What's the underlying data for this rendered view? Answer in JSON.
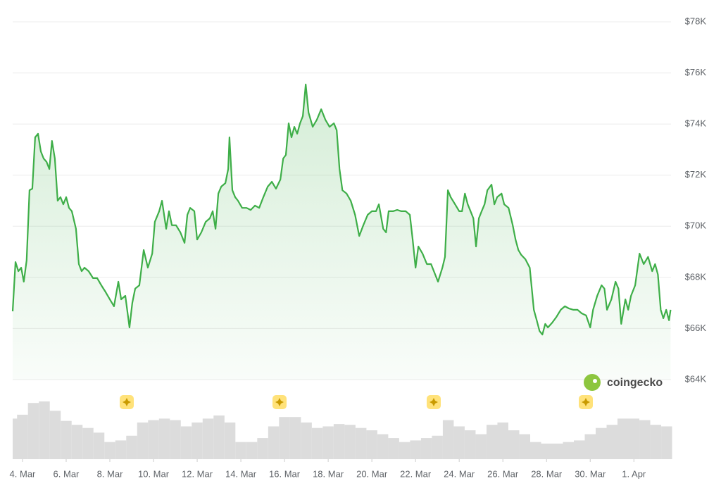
{
  "chart_data": {
    "type": "line",
    "watermark": "coingecko",
    "x": [
      -0.45,
      -0.32,
      -0.19,
      -0.06,
      0.06,
      0.19,
      0.32,
      0.45,
      0.58,
      0.71,
      0.84,
      0.97,
      1.1,
      1.23,
      1.35,
      1.48,
      1.61,
      1.74,
      1.87,
      2,
      2.13,
      2.26,
      2.45,
      2.58,
      2.71,
      2.84,
      3.03,
      3.23,
      3.42,
      3.61,
      3.81,
      4,
      4.19,
      4.39,
      4.52,
      4.71,
      4.9,
      5.03,
      5.16,
      5.35,
      5.55,
      5.74,
      5.94,
      6.06,
      6.26,
      6.39,
      6.58,
      6.71,
      6.84,
      7.03,
      7.23,
      7.42,
      7.55,
      7.68,
      7.87,
      8,
      8.19,
      8.39,
      8.58,
      8.71,
      8.84,
      8.97,
      9.1,
      9.29,
      9.42,
      9.48,
      9.61,
      9.74,
      9.87,
      10.06,
      10.26,
      10.45,
      10.65,
      10.84,
      11.03,
      11.23,
      11.42,
      11.61,
      11.81,
      11.94,
      12.06,
      12.19,
      12.32,
      12.45,
      12.58,
      12.71,
      12.84,
      12.97,
      13.1,
      13.29,
      13.48,
      13.68,
      13.87,
      14.06,
      14.26,
      14.39,
      14.52,
      14.65,
      14.84,
      15.03,
      15.23,
      15.42,
      15.61,
      15.81,
      16,
      16.19,
      16.32,
      16.52,
      16.65,
      16.77,
      16.97,
      17.16,
      17.35,
      17.55,
      17.74,
      17.87,
      18,
      18.13,
      18.32,
      18.52,
      18.71,
      18.9,
      19.03,
      19.23,
      19.35,
      19.48,
      19.61,
      19.81,
      20,
      20.13,
      20.26,
      20.39,
      20.52,
      20.65,
      20.77,
      20.9,
      21.03,
      21.16,
      21.29,
      21.48,
      21.61,
      21.74,
      21.94,
      22.06,
      22.26,
      22.45,
      22.58,
      22.71,
      22.84,
      23.03,
      23.23,
      23.42,
      23.55,
      23.68,
      23.81,
      23.94,
      24.06,
      24.26,
      24.45,
      24.65,
      24.84,
      25.03,
      25.23,
      25.42,
      25.61,
      25.81,
      26,
      26.13,
      26.32,
      26.52,
      26.65,
      26.77,
      26.97,
      27.16,
      27.29,
      27.42,
      27.61,
      27.74,
      27.87,
      28.06,
      28.26,
      28.45,
      28.65,
      28.84,
      28.97,
      29.1,
      29.23,
      29.35,
      29.48,
      29.61,
      29.68
    ],
    "series": [
      {
        "color": "#3eae48",
        "values": [
          66670,
          68600,
          68240,
          68380,
          67830,
          68660,
          71410,
          71470,
          73480,
          73620,
          72930,
          72650,
          72520,
          72240,
          73340,
          72650,
          71000,
          71140,
          70860,
          71140,
          70720,
          70590,
          69900,
          68520,
          68240,
          68380,
          68240,
          67970,
          67970,
          67690,
          67420,
          67140,
          66870,
          67830,
          67140,
          67280,
          66040,
          67000,
          67560,
          67690,
          69070,
          68380,
          68930,
          70170,
          70590,
          71000,
          69900,
          70590,
          70040,
          70040,
          69760,
          69350,
          70450,
          70720,
          70590,
          69480,
          69760,
          70170,
          70310,
          70590,
          69900,
          71280,
          71550,
          71690,
          72240,
          73480,
          71410,
          71140,
          71000,
          70720,
          70720,
          70640,
          70810,
          70720,
          71140,
          71550,
          71740,
          71470,
          71830,
          72650,
          72790,
          74030,
          73480,
          73890,
          73620,
          74030,
          74310,
          75550,
          74450,
          73890,
          74170,
          74580,
          74170,
          73890,
          74030,
          73760,
          72240,
          71410,
          71280,
          71000,
          70450,
          69620,
          70040,
          70450,
          70590,
          70590,
          70860,
          69900,
          69760,
          70590,
          70590,
          70640,
          70590,
          70590,
          70450,
          69480,
          68380,
          69210,
          68930,
          68520,
          68520,
          68110,
          67830,
          68380,
          68800,
          71410,
          71140,
          70860,
          70590,
          70590,
          71280,
          70860,
          70590,
          70310,
          69210,
          70310,
          70590,
          70860,
          71410,
          71630,
          70860,
          71140,
          71280,
          70860,
          70720,
          70040,
          69480,
          69070,
          68880,
          68710,
          68380,
          66730,
          66320,
          65900,
          65760,
          66180,
          66040,
          66230,
          66450,
          66730,
          66870,
          66780,
          66730,
          66730,
          66590,
          66510,
          66040,
          66730,
          67280,
          67690,
          67560,
          66730,
          67140,
          67830,
          67560,
          66180,
          67140,
          66730,
          67280,
          67690,
          68930,
          68520,
          68800,
          68240,
          68520,
          68110,
          66730,
          66400,
          66730,
          66320,
          66730
        ]
      }
    ],
    "volume": {
      "color": "#dcdcdc",
      "x": [
        -0.45,
        0,
        0.5,
        1,
        1.5,
        2,
        2.5,
        3,
        3.5,
        4,
        4.5,
        5,
        5.5,
        6,
        6.5,
        7,
        7.5,
        8,
        8.5,
        9,
        9.5,
        10,
        10.5,
        11,
        11.5,
        12,
        12.5,
        13,
        13.5,
        14,
        14.5,
        15,
        15.5,
        16,
        16.5,
        17,
        17.5,
        18,
        18.5,
        19,
        19.5,
        20,
        20.5,
        21,
        21.5,
        22,
        22.5,
        23,
        23.5,
        24,
        24.5,
        25,
        25.5,
        26,
        26.5,
        27,
        27.5,
        28,
        28.5,
        29,
        29.5
      ],
      "values": [
        52,
        57,
        72,
        74,
        62,
        49,
        44,
        40,
        34,
        22,
        24,
        30,
        47,
        50,
        52,
        50,
        42,
        47,
        52,
        56,
        47,
        22,
        22,
        27,
        42,
        54,
        54,
        47,
        40,
        42,
        45,
        44,
        40,
        37,
        32,
        27,
        22,
        24,
        27,
        30,
        50,
        42,
        37,
        32,
        44,
        47,
        37,
        32,
        22,
        20,
        20,
        22,
        24,
        32,
        40,
        44,
        52,
        52,
        50,
        44,
        42
      ]
    },
    "xlim": [
      -0.45,
      29.7
    ],
    "xticks": [
      {
        "value": 0,
        "label": "4. Mar"
      },
      {
        "value": 2,
        "label": "6. Mar"
      },
      {
        "value": 4,
        "label": "8. Mar"
      },
      {
        "value": 6,
        "label": "10. Mar"
      },
      {
        "value": 8,
        "label": "12. Mar"
      },
      {
        "value": 10,
        "label": "14. Mar"
      },
      {
        "value": 12,
        "label": "16. Mar"
      },
      {
        "value": 14,
        "label": "18. Mar"
      },
      {
        "value": 16,
        "label": "20. Mar"
      },
      {
        "value": 18,
        "label": "22. Mar"
      },
      {
        "value": 20,
        "label": "24. Mar"
      },
      {
        "value": 22,
        "label": "26. Mar"
      },
      {
        "value": 24,
        "label": "28. Mar"
      },
      {
        "value": 26,
        "label": "30. Mar"
      },
      {
        "value": 28,
        "label": "1. Apr"
      }
    ],
    "ylim": [
      64000,
      78000
    ],
    "yticks": [
      {
        "value": 64000,
        "label": "$64K"
      },
      {
        "value": 66000,
        "label": "$66K"
      },
      {
        "value": 68000,
        "label": "$68K"
      },
      {
        "value": 70000,
        "label": "$70K"
      },
      {
        "value": 72000,
        "label": "$72K"
      },
      {
        "value": 74000,
        "label": "$74K"
      },
      {
        "value": 76000,
        "label": "$76K"
      },
      {
        "value": 78000,
        "label": "$78K"
      }
    ],
    "grid": true
  }
}
